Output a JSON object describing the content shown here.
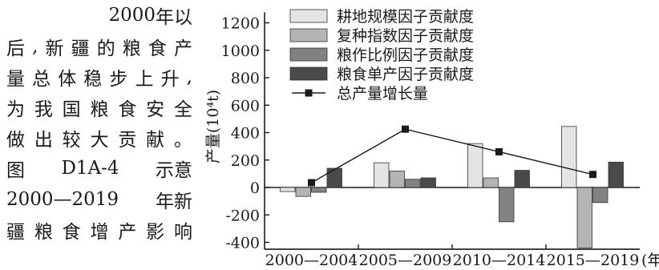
{
  "passage": {
    "lines": [
      "2000 年 以",
      "后,新疆的粮食产",
      "量总体稳步上升,",
      "为我国粮食安全",
      "做出较大贡献。",
      "图 D1A-4 示意",
      "2000—2019 年新",
      "疆粮食增产影响"
    ]
  },
  "chart_data": {
    "type": "bar",
    "categories": [
      "2000—2004",
      "2005—2009",
      "2010—2014",
      "2015—2019"
    ],
    "xlabel": "(年)",
    "ylabel": "产量(10⁴t)",
    "ylim": [
      -450,
      1300
    ],
    "yticks": [
      -400,
      -200,
      0,
      200,
      400,
      600,
      800,
      1000,
      1200
    ],
    "legend_position": "top",
    "series": [
      {
        "name": "耕地规模因子贡献度",
        "kind": "bar",
        "color": "#e4e4e4",
        "values": [
          -30,
          180,
          320,
          445
        ]
      },
      {
        "name": "复种指数因子贡献度",
        "kind": "bar",
        "color": "#b4b4b4",
        "values": [
          -65,
          120,
          70,
          -440
        ]
      },
      {
        "name": "粮作比例因子贡献度",
        "kind": "bar",
        "color": "#828282",
        "values": [
          -35,
          60,
          -250,
          -110
        ]
      },
      {
        "name": "粮食单产因子贡献度",
        "kind": "bar",
        "color": "#4a4a4a",
        "values": [
          140,
          70,
          125,
          185
        ]
      },
      {
        "name": "总产量增长量",
        "kind": "line",
        "color": "#1a1a1a",
        "values": [
          35,
          425,
          260,
          95
        ]
      }
    ]
  }
}
